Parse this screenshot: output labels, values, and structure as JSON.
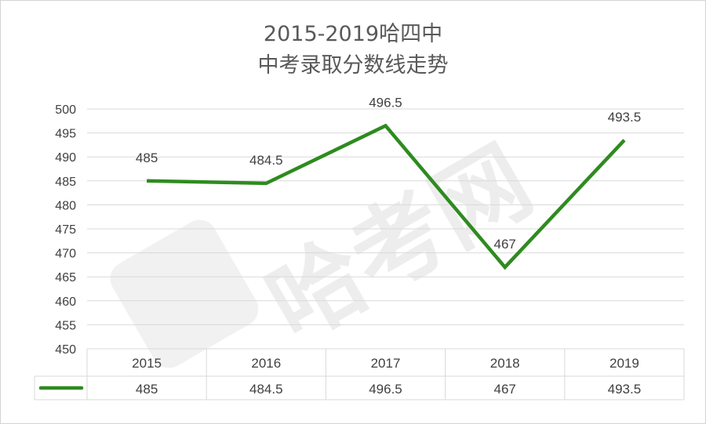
{
  "chart_data": {
    "type": "line",
    "title_line1": "2015-2019哈四中",
    "title_line2": "中考录取分数线走势",
    "categories": [
      "2015",
      "2016",
      "2017",
      "2018",
      "2019"
    ],
    "series": [
      {
        "values": [
          485,
          484.5,
          496.5,
          467,
          493.5
        ],
        "color": "#2e8b1f"
      }
    ],
    "data_labels": [
      "485",
      "484.5",
      "496.5",
      "467",
      "493.5"
    ],
    "table_values": [
      "485",
      "484.5",
      "496.5",
      "467",
      "493.5"
    ],
    "ylim": [
      450,
      500
    ],
    "ytick_step": 5,
    "yticks": [
      "500",
      "495",
      "490",
      "485",
      "480",
      "475",
      "470",
      "465",
      "460",
      "455",
      "450"
    ],
    "grid": true,
    "data_table": true,
    "watermark": "哈考网"
  }
}
